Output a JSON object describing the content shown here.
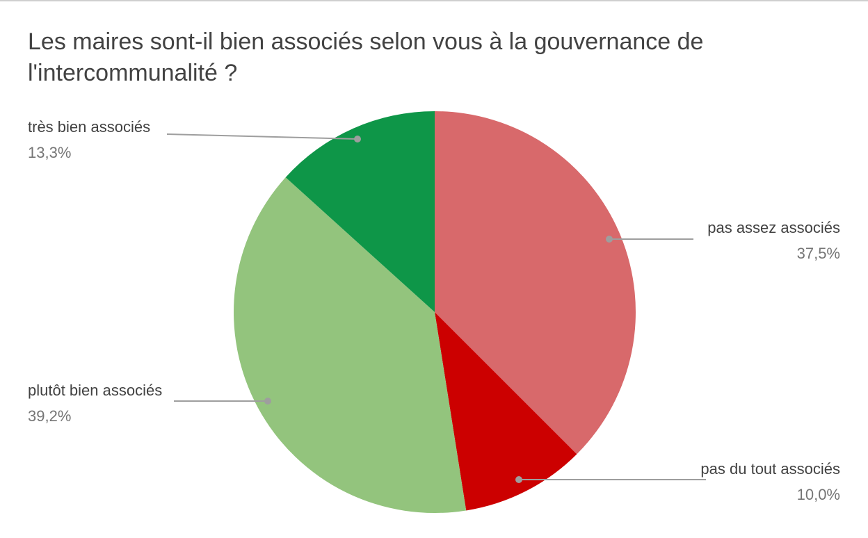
{
  "header": {
    "title_line1": "Les maires sont-il bien associés selon vous à la gouvernance de",
    "title_line2": "l'intercommunalité ?"
  },
  "chart_data": {
    "type": "pie",
    "title": "Les maires sont-il bien associés selon vous à la gouvernance de l'intercommunalité ?",
    "start_angle_deg": -90,
    "direction": "clockwise",
    "legend_position": "outside-callouts",
    "label_color": "#424242",
    "value_color": "#757575",
    "leader_line_color": "#9e9e9e",
    "background_color": "#ffffff",
    "slices": [
      {
        "label": "pas assez associés",
        "value": 37.5,
        "display_value": "37,5%",
        "color": "#D8696B"
      },
      {
        "label": "pas du tout associés",
        "value": 10.0,
        "display_value": "10,0%",
        "color": "#CC0000"
      },
      {
        "label": "plutôt bien associés",
        "value": 39.2,
        "display_value": "39,2%",
        "color": "#93C47D"
      },
      {
        "label": "très bien associés",
        "value": 13.3,
        "display_value": "13,3%",
        "color": "#0E9648"
      }
    ]
  }
}
